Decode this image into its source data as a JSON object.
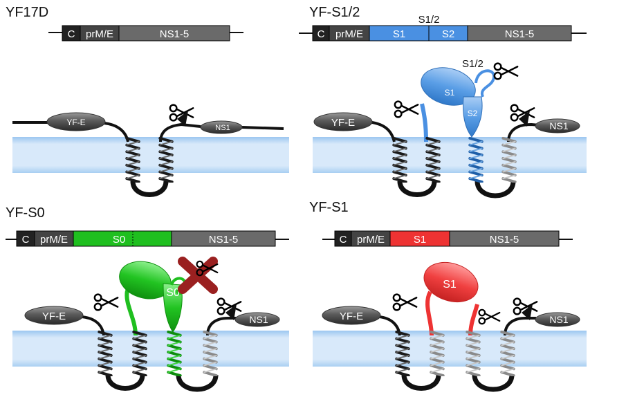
{
  "panels": [
    {
      "id": "yf17d",
      "title": "YF17D",
      "segments": [
        "C",
        "prM/E",
        "NS1-5"
      ],
      "proteins": [
        "YF-E",
        "NS1"
      ]
    },
    {
      "id": "yf-s12",
      "title": "YF-S1/2",
      "segments": [
        "C",
        "prM/E",
        "S1",
        "S2",
        "NS1-5"
      ],
      "construct_label": "S1/2",
      "cleavage_label": "S1/2",
      "proteins": [
        "YF-E",
        "S1",
        "S2",
        "NS1"
      ]
    },
    {
      "id": "yf-s0",
      "title": "YF-S0",
      "segments": [
        "C",
        "prM/E",
        "S0",
        "NS1-5"
      ],
      "proteins": [
        "YF-E",
        "S0",
        "NS1"
      ]
    },
    {
      "id": "yf-s1",
      "title": "YF-S1",
      "segments": [
        "C",
        "prM/E",
        "S1",
        "NS1-5"
      ],
      "proteins": [
        "YF-E",
        "S1",
        "NS1"
      ]
    }
  ],
  "colors": {
    "membrane": "#cfe3f7",
    "membrane_edge": "#b9d6f3",
    "c_segment": "#222222",
    "prme_segment": "#444444",
    "ns_segment": "#6a6a6a",
    "s12_blue": "#4a90e2",
    "s0_green": "#1fbf1f",
    "s1_red": "#ee3333",
    "cross_dark_red": "#9a2020"
  },
  "icons": [
    "scissors-icon",
    "cross-icon"
  ]
}
